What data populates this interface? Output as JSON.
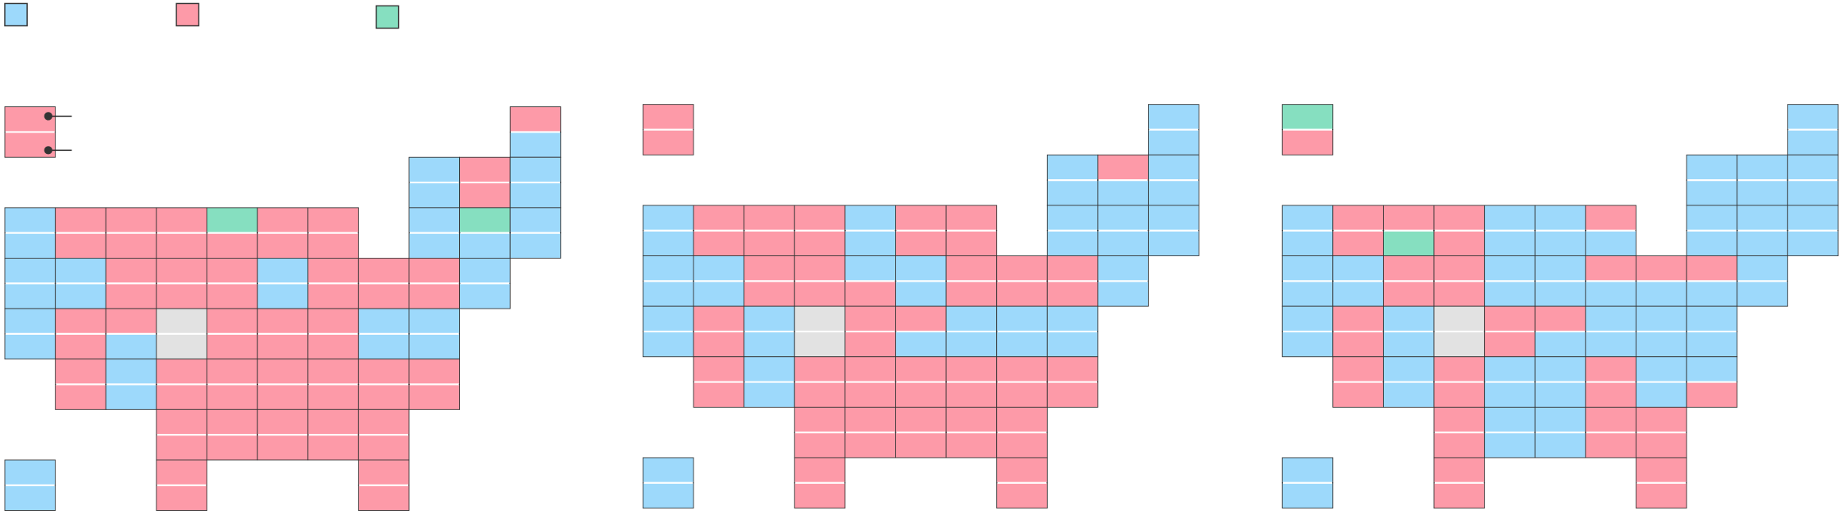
{
  "legend": [
    {
      "color": "#9dd9fb"
    },
    {
      "color": "#fd9aa8"
    },
    {
      "color": "#86dfc0"
    }
  ],
  "maps": [
    {
      "tiles": [
        [
          0,
          0,
          "#fd9aa8",
          "#fd9aa8"
        ],
        [
          0,
          10,
          "#fd9aa8",
          "#9dd9fb"
        ],
        [
          1,
          8,
          "#9dd9fb",
          "#9dd9fb"
        ],
        [
          1,
          9,
          "#fd9aa8",
          "#fd9aa8"
        ],
        [
          1,
          10,
          "#9dd9fb",
          "#9dd9fb"
        ],
        [
          2,
          0,
          "#9dd9fb",
          "#9dd9fb"
        ],
        [
          2,
          1,
          "#fd9aa8",
          "#fd9aa8"
        ],
        [
          2,
          2,
          "#fd9aa8",
          "#fd9aa8"
        ],
        [
          2,
          3,
          "#fd9aa8",
          "#fd9aa8"
        ],
        [
          2,
          4,
          "#86dfc0",
          "#fd9aa8"
        ],
        [
          2,
          5,
          "#fd9aa8",
          "#fd9aa8"
        ],
        [
          2,
          6,
          "#fd9aa8",
          "#fd9aa8"
        ],
        [
          2,
          8,
          "#9dd9fb",
          "#9dd9fb"
        ],
        [
          2,
          9,
          "#86dfc0",
          "#9dd9fb"
        ],
        [
          2,
          10,
          "#9dd9fb",
          "#9dd9fb"
        ],
        [
          3,
          0,
          "#9dd9fb",
          "#9dd9fb"
        ],
        [
          3,
          1,
          "#9dd9fb",
          "#9dd9fb"
        ],
        [
          3,
          2,
          "#fd9aa8",
          "#fd9aa8"
        ],
        [
          3,
          3,
          "#fd9aa8",
          "#fd9aa8"
        ],
        [
          3,
          4,
          "#fd9aa8",
          "#fd9aa8"
        ],
        [
          3,
          5,
          "#9dd9fb",
          "#9dd9fb"
        ],
        [
          3,
          6,
          "#fd9aa8",
          "#fd9aa8"
        ],
        [
          3,
          7,
          "#fd9aa8",
          "#fd9aa8"
        ],
        [
          3,
          8,
          "#fd9aa8",
          "#fd9aa8"
        ],
        [
          3,
          9,
          "#9dd9fb",
          "#9dd9fb"
        ],
        [
          4,
          0,
          "#9dd9fb",
          "#9dd9fb"
        ],
        [
          4,
          1,
          "#fd9aa8",
          "#fd9aa8"
        ],
        [
          4,
          2,
          "#fd9aa8",
          "#9dd9fb"
        ],
        [
          4,
          3,
          "#e2e2e2",
          "#e2e2e2"
        ],
        [
          4,
          4,
          "#fd9aa8",
          "#fd9aa8"
        ],
        [
          4,
          5,
          "#fd9aa8",
          "#fd9aa8"
        ],
        [
          4,
          6,
          "#fd9aa8",
          "#fd9aa8"
        ],
        [
          4,
          7,
          "#9dd9fb",
          "#9dd9fb"
        ],
        [
          4,
          8,
          "#9dd9fb",
          "#9dd9fb"
        ],
        [
          5,
          1,
          "#fd9aa8",
          "#fd9aa8"
        ],
        [
          5,
          2,
          "#9dd9fb",
          "#9dd9fb"
        ],
        [
          5,
          3,
          "#fd9aa8",
          "#fd9aa8"
        ],
        [
          5,
          4,
          "#fd9aa8",
          "#fd9aa8"
        ],
        [
          5,
          5,
          "#fd9aa8",
          "#fd9aa8"
        ],
        [
          5,
          6,
          "#fd9aa8",
          "#fd9aa8"
        ],
        [
          5,
          7,
          "#fd9aa8",
          "#fd9aa8"
        ],
        [
          5,
          8,
          "#fd9aa8",
          "#fd9aa8"
        ],
        [
          6,
          3,
          "#fd9aa8",
          "#fd9aa8"
        ],
        [
          6,
          4,
          "#fd9aa8",
          "#fd9aa8"
        ],
        [
          6,
          5,
          "#fd9aa8",
          "#fd9aa8"
        ],
        [
          6,
          6,
          "#fd9aa8",
          "#fd9aa8"
        ],
        [
          6,
          7,
          "#fd9aa8",
          "#fd9aa8"
        ],
        [
          7,
          0,
          "#9dd9fb",
          "#9dd9fb"
        ],
        [
          7,
          3,
          "#fd9aa8",
          "#fd9aa8"
        ],
        [
          7,
          7,
          "#fd9aa8",
          "#fd9aa8"
        ]
      ]
    },
    {
      "tiles": [
        [
          0,
          0,
          "#fd9aa8",
          "#fd9aa8"
        ],
        [
          0,
          10,
          "#9dd9fb",
          "#9dd9fb"
        ],
        [
          1,
          8,
          "#9dd9fb",
          "#9dd9fb"
        ],
        [
          1,
          9,
          "#fd9aa8",
          "#9dd9fb"
        ],
        [
          1,
          10,
          "#9dd9fb",
          "#9dd9fb"
        ],
        [
          2,
          0,
          "#9dd9fb",
          "#9dd9fb"
        ],
        [
          2,
          1,
          "#fd9aa8",
          "#fd9aa8"
        ],
        [
          2,
          2,
          "#fd9aa8",
          "#fd9aa8"
        ],
        [
          2,
          3,
          "#fd9aa8",
          "#fd9aa8"
        ],
        [
          2,
          4,
          "#9dd9fb",
          "#9dd9fb"
        ],
        [
          2,
          5,
          "#fd9aa8",
          "#fd9aa8"
        ],
        [
          2,
          6,
          "#fd9aa8",
          "#fd9aa8"
        ],
        [
          2,
          8,
          "#9dd9fb",
          "#9dd9fb"
        ],
        [
          2,
          9,
          "#9dd9fb",
          "#9dd9fb"
        ],
        [
          2,
          10,
          "#9dd9fb",
          "#9dd9fb"
        ],
        [
          3,
          0,
          "#9dd9fb",
          "#9dd9fb"
        ],
        [
          3,
          1,
          "#9dd9fb",
          "#9dd9fb"
        ],
        [
          3,
          2,
          "#fd9aa8",
          "#fd9aa8"
        ],
        [
          3,
          3,
          "#fd9aa8",
          "#fd9aa8"
        ],
        [
          3,
          4,
          "#9dd9fb",
          "#fd9aa8"
        ],
        [
          3,
          5,
          "#9dd9fb",
          "#9dd9fb"
        ],
        [
          3,
          6,
          "#fd9aa8",
          "#fd9aa8"
        ],
        [
          3,
          7,
          "#fd9aa8",
          "#fd9aa8"
        ],
        [
          3,
          8,
          "#fd9aa8",
          "#fd9aa8"
        ],
        [
          3,
          9,
          "#9dd9fb",
          "#9dd9fb"
        ],
        [
          4,
          0,
          "#9dd9fb",
          "#9dd9fb"
        ],
        [
          4,
          1,
          "#fd9aa8",
          "#fd9aa8"
        ],
        [
          4,
          2,
          "#9dd9fb",
          "#9dd9fb"
        ],
        [
          4,
          3,
          "#e2e2e2",
          "#e2e2e2"
        ],
        [
          4,
          4,
          "#fd9aa8",
          "#fd9aa8"
        ],
        [
          4,
          5,
          "#fd9aa8",
          "#9dd9fb"
        ],
        [
          4,
          6,
          "#9dd9fb",
          "#9dd9fb"
        ],
        [
          4,
          7,
          "#9dd9fb",
          "#9dd9fb"
        ],
        [
          4,
          8,
          "#9dd9fb",
          "#9dd9fb"
        ],
        [
          5,
          1,
          "#fd9aa8",
          "#fd9aa8"
        ],
        [
          5,
          2,
          "#9dd9fb",
          "#9dd9fb"
        ],
        [
          5,
          3,
          "#fd9aa8",
          "#fd9aa8"
        ],
        [
          5,
          4,
          "#fd9aa8",
          "#fd9aa8"
        ],
        [
          5,
          5,
          "#fd9aa8",
          "#fd9aa8"
        ],
        [
          5,
          6,
          "#fd9aa8",
          "#fd9aa8"
        ],
        [
          5,
          7,
          "#fd9aa8",
          "#fd9aa8"
        ],
        [
          5,
          8,
          "#fd9aa8",
          "#fd9aa8"
        ],
        [
          6,
          3,
          "#fd9aa8",
          "#fd9aa8"
        ],
        [
          6,
          4,
          "#fd9aa8",
          "#fd9aa8"
        ],
        [
          6,
          5,
          "#fd9aa8",
          "#fd9aa8"
        ],
        [
          6,
          6,
          "#fd9aa8",
          "#fd9aa8"
        ],
        [
          6,
          7,
          "#fd9aa8",
          "#fd9aa8"
        ],
        [
          7,
          0,
          "#9dd9fb",
          "#9dd9fb"
        ],
        [
          7,
          3,
          "#fd9aa8",
          "#fd9aa8"
        ],
        [
          7,
          7,
          "#fd9aa8",
          "#fd9aa8"
        ]
      ]
    },
    {
      "tiles": [
        [
          0,
          0,
          "#86dfc0",
          "#fd9aa8"
        ],
        [
          0,
          10,
          "#9dd9fb",
          "#9dd9fb"
        ],
        [
          1,
          8,
          "#9dd9fb",
          "#9dd9fb"
        ],
        [
          1,
          9,
          "#9dd9fb",
          "#9dd9fb"
        ],
        [
          1,
          10,
          "#9dd9fb",
          "#9dd9fb"
        ],
        [
          2,
          0,
          "#9dd9fb",
          "#9dd9fb"
        ],
        [
          2,
          1,
          "#fd9aa8",
          "#fd9aa8"
        ],
        [
          2,
          2,
          "#fd9aa8",
          "#86dfc0"
        ],
        [
          2,
          3,
          "#fd9aa8",
          "#fd9aa8"
        ],
        [
          2,
          4,
          "#9dd9fb",
          "#9dd9fb"
        ],
        [
          2,
          5,
          "#9dd9fb",
          "#9dd9fb"
        ],
        [
          2,
          6,
          "#fd9aa8",
          "#9dd9fb"
        ],
        [
          2,
          8,
          "#9dd9fb",
          "#9dd9fb"
        ],
        [
          2,
          9,
          "#9dd9fb",
          "#9dd9fb"
        ],
        [
          2,
          10,
          "#9dd9fb",
          "#9dd9fb"
        ],
        [
          3,
          0,
          "#9dd9fb",
          "#9dd9fb"
        ],
        [
          3,
          1,
          "#9dd9fb",
          "#9dd9fb"
        ],
        [
          3,
          2,
          "#fd9aa8",
          "#fd9aa8"
        ],
        [
          3,
          3,
          "#fd9aa8",
          "#fd9aa8"
        ],
        [
          3,
          4,
          "#9dd9fb",
          "#9dd9fb"
        ],
        [
          3,
          5,
          "#9dd9fb",
          "#9dd9fb"
        ],
        [
          3,
          6,
          "#fd9aa8",
          "#9dd9fb"
        ],
        [
          3,
          7,
          "#fd9aa8",
          "#9dd9fb"
        ],
        [
          3,
          8,
          "#fd9aa8",
          "#9dd9fb"
        ],
        [
          3,
          9,
          "#9dd9fb",
          "#9dd9fb"
        ],
        [
          4,
          0,
          "#9dd9fb",
          "#9dd9fb"
        ],
        [
          4,
          1,
          "#fd9aa8",
          "#fd9aa8"
        ],
        [
          4,
          2,
          "#9dd9fb",
          "#9dd9fb"
        ],
        [
          4,
          3,
          "#e2e2e2",
          "#e2e2e2"
        ],
        [
          4,
          4,
          "#fd9aa8",
          "#fd9aa8"
        ],
        [
          4,
          5,
          "#fd9aa8",
          "#9dd9fb"
        ],
        [
          4,
          6,
          "#9dd9fb",
          "#9dd9fb"
        ],
        [
          4,
          7,
          "#9dd9fb",
          "#9dd9fb"
        ],
        [
          4,
          8,
          "#9dd9fb",
          "#9dd9fb"
        ],
        [
          5,
          1,
          "#fd9aa8",
          "#fd9aa8"
        ],
        [
          5,
          2,
          "#9dd9fb",
          "#9dd9fb"
        ],
        [
          5,
          3,
          "#fd9aa8",
          "#fd9aa8"
        ],
        [
          5,
          4,
          "#9dd9fb",
          "#9dd9fb"
        ],
        [
          5,
          5,
          "#9dd9fb",
          "#9dd9fb"
        ],
        [
          5,
          6,
          "#fd9aa8",
          "#fd9aa8"
        ],
        [
          5,
          7,
          "#9dd9fb",
          "#9dd9fb"
        ],
        [
          5,
          8,
          "#9dd9fb",
          "#fd9aa8"
        ],
        [
          6,
          3,
          "#fd9aa8",
          "#fd9aa8"
        ],
        [
          6,
          4,
          "#9dd9fb",
          "#9dd9fb"
        ],
        [
          6,
          5,
          "#9dd9fb",
          "#9dd9fb"
        ],
        [
          6,
          6,
          "#fd9aa8",
          "#fd9aa8"
        ],
        [
          6,
          7,
          "#fd9aa8",
          "#fd9aa8"
        ],
        [
          7,
          0,
          "#9dd9fb",
          "#9dd9fb"
        ],
        [
          7,
          3,
          "#fd9aa8",
          "#fd9aa8"
        ],
        [
          7,
          7,
          "#fd9aa8",
          "#fd9aa8"
        ]
      ]
    }
  ]
}
